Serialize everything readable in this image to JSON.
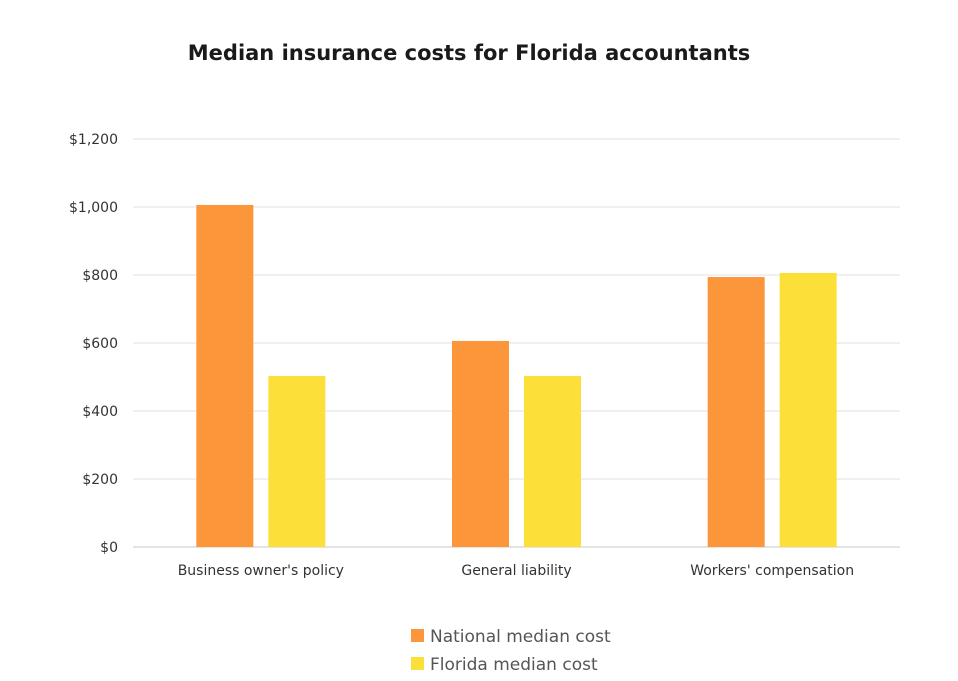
{
  "chart_data": {
    "type": "bar",
    "title": "Median insurance costs for Florida accountants",
    "xlabel": "",
    "ylabel": "",
    "categories": [
      "Business owner's policy",
      "General liability",
      "Workers' compensation"
    ],
    "series": [
      {
        "name": "National median cost",
        "color": "#fb963a",
        "values": [
          1006,
          606,
          794
        ]
      },
      {
        "name": "Florida median cost",
        "color": "#fddf3a",
        "values": [
          503,
          503,
          806
        ]
      }
    ],
    "ylim": [
      0,
      1200
    ],
    "yticks": [
      0,
      200,
      400,
      600,
      800,
      1000,
      1200
    ],
    "ytick_labels": [
      "$0",
      "$200",
      "$400",
      "$600",
      "$800",
      "$1,000",
      "$1,200"
    ],
    "grid": true,
    "legend_position": "bottom"
  }
}
